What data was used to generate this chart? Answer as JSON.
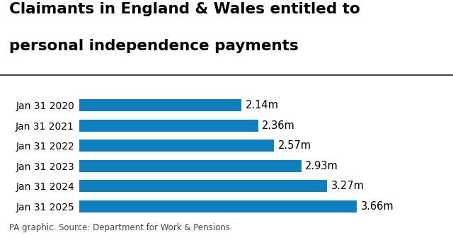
{
  "title_line1": "Claimants in England & Wales entitled to",
  "title_line2": "personal independence payments",
  "categories": [
    "Jan 31 2020",
    "Jan 31 2021",
    "Jan 31 2022",
    "Jan 31 2023",
    "Jan 31 2024",
    "Jan 31 2025"
  ],
  "values": [
    2.14,
    2.36,
    2.57,
    2.93,
    3.27,
    3.66
  ],
  "labels": [
    "2.14m",
    "2.36m",
    "2.57m",
    "2.93m",
    "3.27m",
    "3.66m"
  ],
  "bar_color": "#0f7fc0",
  "background_color": "#ffffff",
  "title_color": "#000000",
  "label_color": "#000000",
  "caption": "PA graphic. Source: Department for Work & Pensions",
  "xlim": [
    0,
    4.3
  ],
  "title_fontsize": 15.5,
  "bar_label_fontsize": 10.5,
  "tick_fontsize": 10,
  "caption_fontsize": 8.5
}
